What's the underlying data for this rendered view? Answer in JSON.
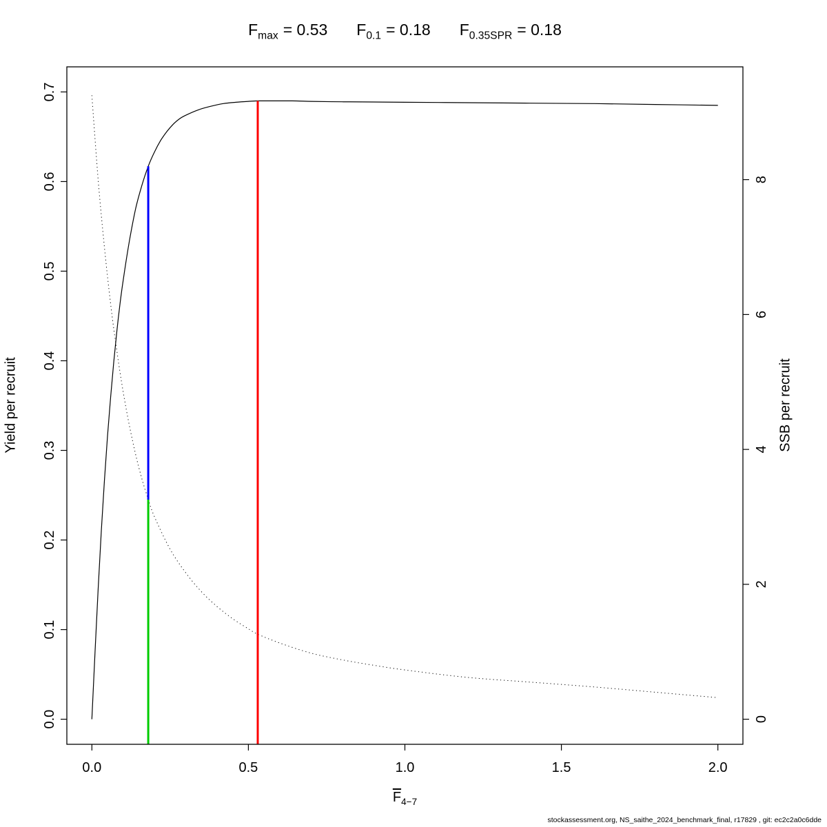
{
  "title": {
    "stats": [
      {
        "base": "F",
        "sub": "max",
        "value": "= 0.53"
      },
      {
        "base": "F",
        "sub": "0.1",
        "value": "= 0.18"
      },
      {
        "base": "F",
        "sub": "0.35SPR",
        "value": "= 0.18"
      }
    ]
  },
  "footer": "stockassessment.org, NS_saithe_2024_benchmark_final, r17829 , git: ec2c2a0c6dde",
  "chart_data": {
    "type": "line",
    "title": "Fmax = 0.53  F0.1 = 0.18  F0.35SPR = 0.18",
    "x_axis": {
      "label_base": "F",
      "label_sub": "4−7",
      "lim": [
        0,
        2
      ],
      "tick_values": [
        0,
        0.5,
        1,
        1.5,
        2
      ],
      "ticks": [
        "0.0",
        "0.5",
        "1.0",
        "1.5",
        "2.0"
      ]
    },
    "y_axis_left": {
      "label": "Yield per recruit",
      "lim": [
        0,
        0.7
      ],
      "tick_values": [
        0,
        0.1,
        0.2,
        0.3,
        0.4,
        0.5,
        0.6,
        0.7
      ],
      "ticks": [
        "0.0",
        "0.1",
        "0.2",
        "0.3",
        "0.4",
        "0.5",
        "0.6",
        "0.7"
      ]
    },
    "y_axis_right": {
      "label": "SSB per recruit",
      "lim": [
        0,
        9.3
      ],
      "tick_values": [
        0,
        2,
        4,
        6,
        8
      ],
      "ticks": [
        "0",
        "2",
        "4",
        "6",
        "8"
      ]
    },
    "grid": false,
    "series": [
      {
        "name": "yield-per-recruit",
        "axis": "left",
        "style": "solid",
        "color": "#000000",
        "width": 1.2,
        "x": [
          0,
          0.01,
          0.02,
          0.03,
          0.04,
          0.05,
          0.06,
          0.07,
          0.08,
          0.09,
          0.1,
          0.12,
          0.14,
          0.16,
          0.18,
          0.2,
          0.22,
          0.24,
          0.26,
          0.28,
          0.3,
          0.34,
          0.38,
          0.42,
          0.46,
          0.5,
          0.53,
          0.58,
          0.64,
          0.7,
          0.8,
          0.9,
          1.0,
          1.2,
          1.4,
          1.6,
          1.8,
          2.0
        ],
        "y": [
          0,
          0.075,
          0.145,
          0.21,
          0.266,
          0.316,
          0.36,
          0.399,
          0.434,
          0.464,
          0.49,
          0.534,
          0.57,
          0.596,
          0.617,
          0.633,
          0.646,
          0.656,
          0.664,
          0.67,
          0.674,
          0.68,
          0.684,
          0.687,
          0.6885,
          0.6895,
          0.69,
          0.69,
          0.69,
          0.6895,
          0.689,
          0.6888,
          0.6885,
          0.688,
          0.6875,
          0.687,
          0.686,
          0.685
        ]
      },
      {
        "name": "ssb-per-recruit",
        "axis": "right",
        "style": "dotted",
        "color": "#000000",
        "width": 1,
        "x": [
          0,
          0.02,
          0.04,
          0.06,
          0.08,
          0.1,
          0.12,
          0.14,
          0.16,
          0.18,
          0.2,
          0.25,
          0.3,
          0.35,
          0.4,
          0.45,
          0.5,
          0.53,
          0.6,
          0.7,
          0.8,
          0.9,
          1.0,
          1.2,
          1.4,
          1.6,
          1.8,
          2.0
        ],
        "y": [
          9.25,
          8.0,
          7.0,
          6.15,
          5.45,
          4.85,
          4.35,
          3.92,
          3.56,
          3.26,
          3.0,
          2.52,
          2.17,
          1.89,
          1.67,
          1.49,
          1.34,
          1.26,
          1.13,
          0.98,
          0.88,
          0.8,
          0.73,
          0.62,
          0.55,
          0.48,
          0.4,
          0.32
        ]
      }
    ],
    "reference_lines": [
      {
        "name": "fmax-line",
        "label": "Fmax = 0.53",
        "x": 0.53,
        "color": "#ff0000",
        "y_from": null,
        "y_to": 0.69,
        "width": 3
      },
      {
        "name": "f01-line",
        "label": "F0.1 = 0.18",
        "x": 0.18,
        "color": "#0000ff",
        "y_from": 0.245,
        "y_to": 0.617,
        "width": 3
      },
      {
        "name": "f035spr-line",
        "label": "F0.35SPR = 0.18",
        "x": 0.18,
        "color": "#00cc00",
        "y_from": null,
        "y_to": 0.245,
        "width": 3
      }
    ]
  }
}
